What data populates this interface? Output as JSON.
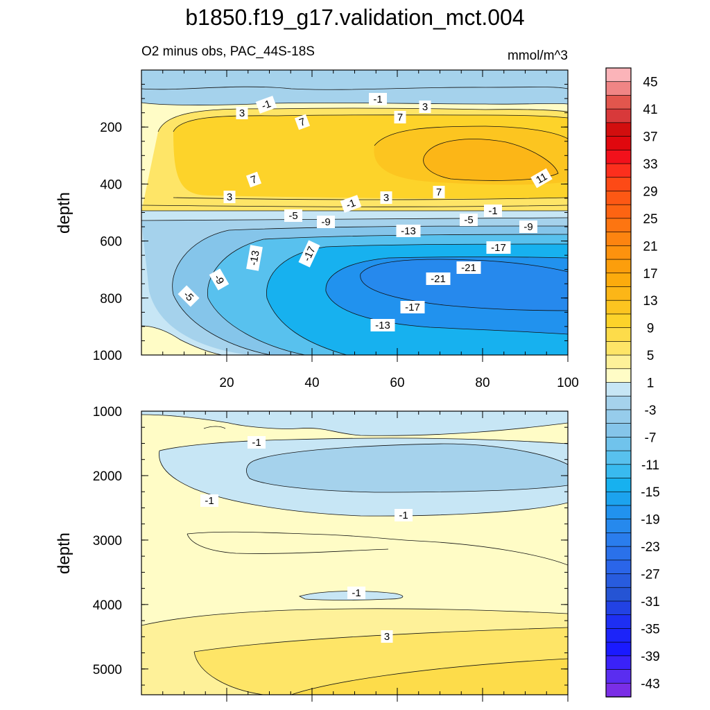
{
  "chart_data": {
    "type": "contour",
    "title": "b1850.f19_g17.validation_mct.004",
    "subtitle_left": "O2 minus obs, PAC_44S-18S",
    "units": "mmol/m^3",
    "panels": [
      {
        "name": "upper",
        "ylabel": "depth",
        "ylim": [
          0,
          1000
        ],
        "xlim": [
          0,
          100
        ],
        "xticks": [
          "20",
          "40",
          "60",
          "80",
          "100"
        ],
        "yticks": [
          "200",
          "400",
          "600",
          "800",
          "1000"
        ],
        "contour_labels": [
          "-1",
          "-1",
          "3",
          "3",
          "7",
          "7",
          "7",
          "7",
          "11",
          "3",
          "3",
          "-1",
          "-1",
          "-5",
          "-9",
          "-13",
          "-5",
          "-9",
          "-17",
          "-13",
          "-17",
          "-21",
          "-21",
          "-9",
          "-5",
          "-17",
          "-13"
        ]
      },
      {
        "name": "lower",
        "ylabel": "depth",
        "ylim": [
          1000,
          5400
        ],
        "xlim": [
          0,
          100
        ],
        "yticks": [
          "1000",
          "2000",
          "3000",
          "4000",
          "5000"
        ],
        "contour_labels": [
          "-1",
          "-1",
          "-1",
          "-1",
          "3"
        ]
      }
    ],
    "colorbar": {
      "levels": [
        {
          "label": "45",
          "color": "#fbb4b9"
        },
        {
          "label": "41",
          "color": "#e2564d"
        },
        {
          "label": "37",
          "color": "#d20e0e"
        },
        {
          "label": "33",
          "color": "#f2111b"
        },
        {
          "label": "29",
          "color": "#fd4a16"
        },
        {
          "label": "25",
          "color": "#fd6412"
        },
        {
          "label": "21",
          "color": "#fd8410"
        },
        {
          "label": "17",
          "color": "#fc9e0c"
        },
        {
          "label": "13",
          "color": "#fcb617"
        },
        {
          "label": "9",
          "color": "#fdd32a"
        },
        {
          "label": "5",
          "color": "#fee567"
        },
        {
          "label": "1",
          "color": "#fffcc6"
        },
        {
          "label": "-3",
          "color": "#a5d2ec"
        },
        {
          "label": "-7",
          "color": "#85c5ea"
        },
        {
          "label": "-11",
          "color": "#58c1ee"
        },
        {
          "label": "-15",
          "color": "#17b1ef"
        },
        {
          "label": "-19",
          "color": "#2192ee"
        },
        {
          "label": "-23",
          "color": "#2a7ded"
        },
        {
          "label": "-27",
          "color": "#2a65e9"
        },
        {
          "label": "-31",
          "color": "#2554d4"
        },
        {
          "label": "-35",
          "color": "#1e2ff3"
        },
        {
          "label": "-39",
          "color": "#1a1aff"
        },
        {
          "label": "-43",
          "color": "#5a2df0"
        }
      ],
      "fine_colors": [
        "#fbb4b9",
        "#f08585",
        "#e2564d",
        "#d8393a",
        "#d20e0e",
        "#e0080e",
        "#f2111b",
        "#fc2f1d",
        "#fd4a16",
        "#fd5814",
        "#fd6412",
        "#fd7511",
        "#fd8410",
        "#fd920e",
        "#fc9e0c",
        "#fcab0d",
        "#fcb617",
        "#fcc520",
        "#fdd32a",
        "#fddc4a",
        "#fee567",
        "#fef199",
        "#fffcc6",
        "#c7e6f5",
        "#a5d2ec",
        "#96cceb",
        "#85c5ea",
        "#70c3ec",
        "#58c1ee",
        "#39baef",
        "#17b1ef",
        "#1ca3ee",
        "#2192ee",
        "#2689ed",
        "#2a7ded",
        "#2a71ea",
        "#2a65e9",
        "#285cde",
        "#2554d4",
        "#2242e4",
        "#1e2ff3",
        "#1c24f9",
        "#1a1aff",
        "#3a22f8",
        "#5a2df0",
        "#7a2ee6"
      ]
    }
  }
}
